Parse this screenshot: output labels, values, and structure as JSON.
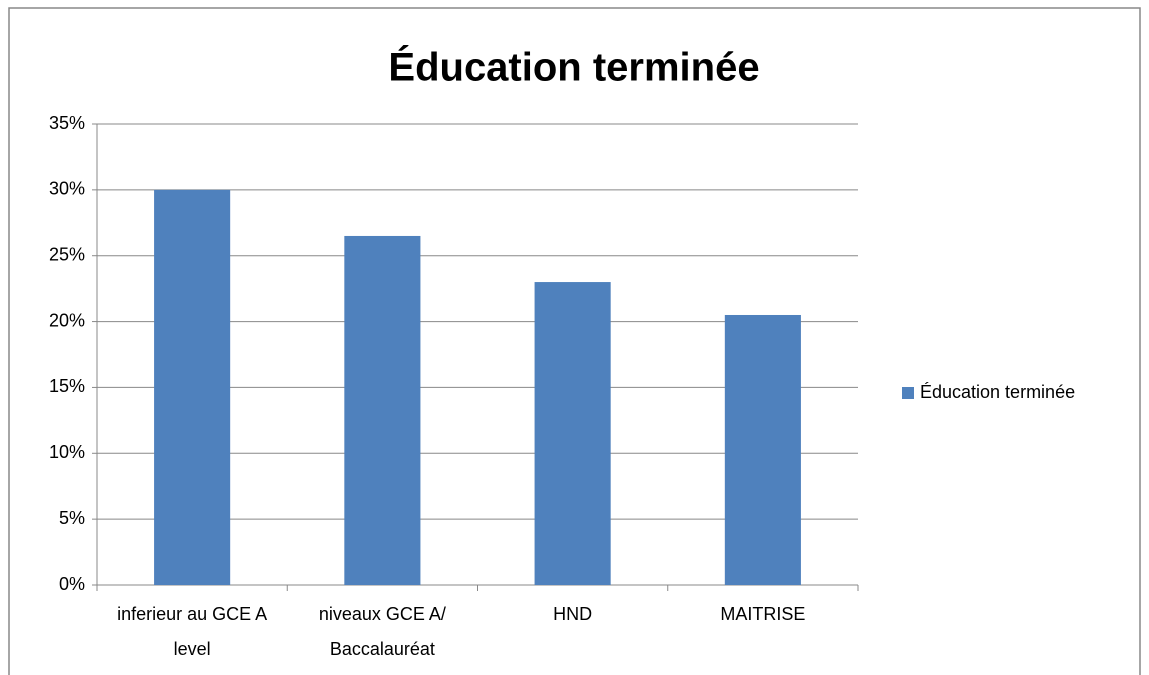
{
  "chart_data": {
    "type": "bar",
    "title": "Éducation terminée",
    "categories": [
      "inferieur au GCE A level",
      "niveaux GCE A/ Baccalauréat",
      "HND",
      "MAITRISE"
    ],
    "series": [
      {
        "name": "Éducation terminée",
        "color": "#4f81bd",
        "values": [
          30,
          26.5,
          23,
          20.5
        ]
      }
    ],
    "ylim": [
      0,
      35
    ],
    "yticks": [
      {
        "value": 0,
        "label": "0%"
      },
      {
        "value": 5,
        "label": "5%"
      },
      {
        "value": 10,
        "label": "10%"
      },
      {
        "value": 15,
        "label": "15%"
      },
      {
        "value": 20,
        "label": "20%"
      },
      {
        "value": 25,
        "label": "25%"
      },
      {
        "value": 30,
        "label": "30%"
      },
      {
        "value": 35,
        "label": "35%"
      }
    ],
    "grid": true,
    "legend": "right"
  }
}
